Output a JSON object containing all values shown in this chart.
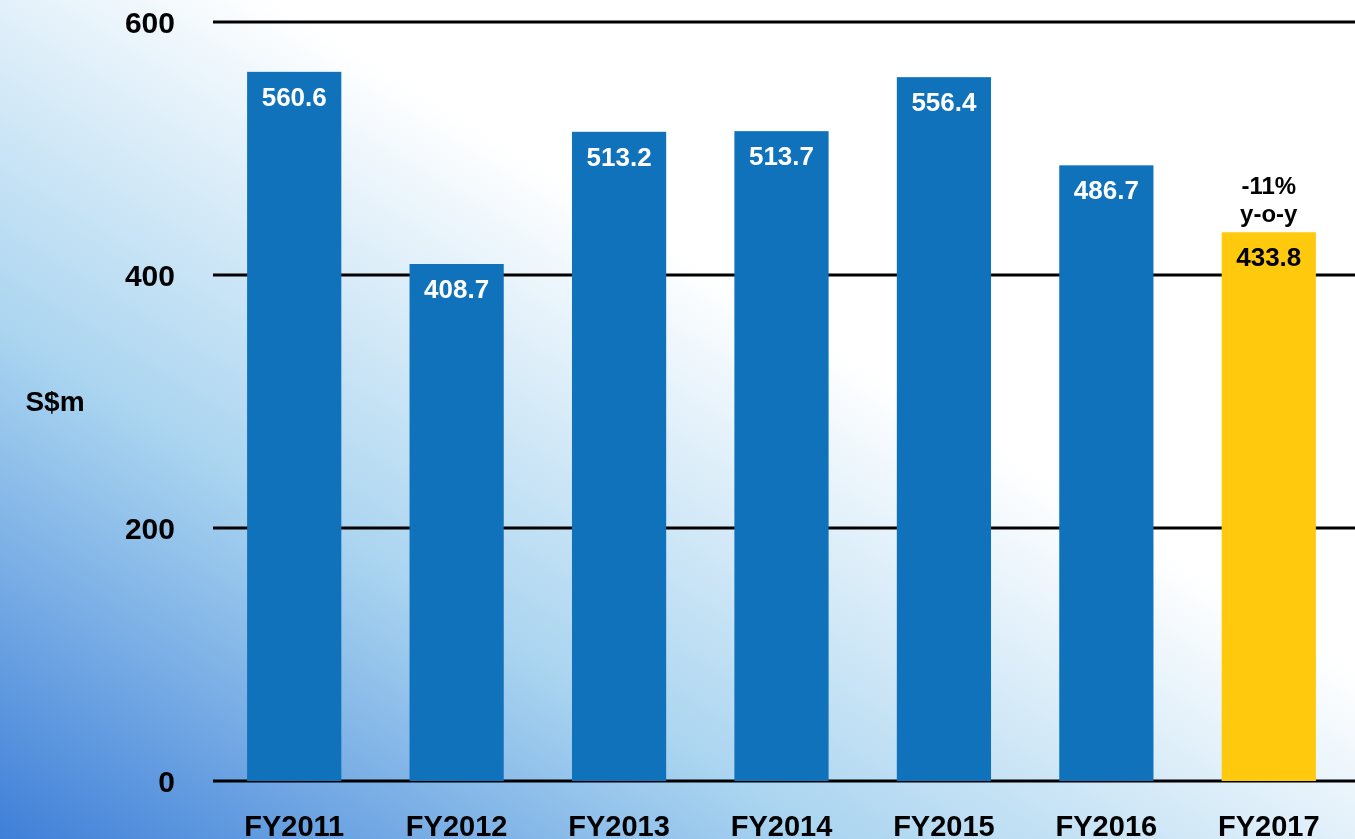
{
  "chart_data": {
    "type": "bar",
    "ylabel": "S$m",
    "categories": [
      "FY2011",
      "FY2012",
      "FY2013",
      "FY2014",
      "FY2015",
      "FY2016",
      "FY2017"
    ],
    "values": [
      560.6,
      408.7,
      513.2,
      513.7,
      556.4,
      486.7,
      433.8
    ],
    "colors": [
      "#0f72ba",
      "#0f72ba",
      "#0f72ba",
      "#0f72ba",
      "#0f72ba",
      "#0f72ba",
      "#ffc90e"
    ],
    "ylim": [
      0,
      600
    ],
    "yticks": [
      0,
      200,
      400,
      600
    ],
    "grid": "y",
    "data_labels": true,
    "annotations": [
      {
        "text": "-11%\ny-o-y",
        "x": "FY2017",
        "y": 433.8
      }
    ]
  }
}
